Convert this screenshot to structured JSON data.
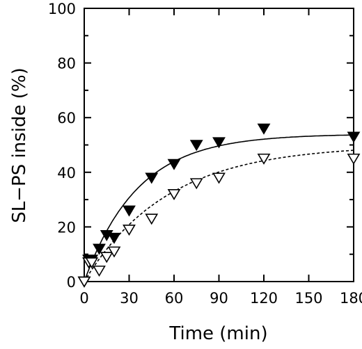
{
  "chart_data": {
    "type": "scatter",
    "xlabel": "Time (min)",
    "ylabel": "SL−PS inside (%)",
    "xlim": [
      0,
      180
    ],
    "ylim": [
      0,
      100
    ],
    "x_ticks": [
      0,
      30,
      60,
      90,
      120,
      150,
      180
    ],
    "x_tick_labels": [
      "0",
      "30",
      "60",
      "90",
      "120",
      "150",
      "180"
    ],
    "y_ticks": [
      0,
      20,
      40,
      60,
      80,
      100
    ],
    "y_tick_labels": [
      "0",
      "20",
      "40",
      "60",
      "80",
      "100"
    ],
    "grid": false,
    "legend": "none",
    "series": [
      {
        "marker": "filled-down-triangle",
        "line_style": "solid",
        "x": [
          0,
          3,
          5,
          10,
          15,
          20,
          30,
          45,
          60,
          75,
          90,
          120,
          180
        ],
        "y": [
          0,
          8,
          8,
          12,
          17,
          16,
          26,
          38,
          43,
          50,
          51,
          56,
          53
        ],
        "fit": {
          "x0": 0,
          "plateau": 54,
          "rate": 0.028,
          "dash": false
        }
      },
      {
        "marker": "open-down-triangle",
        "line_style": "dashed",
        "x": [
          0,
          3,
          5,
          10,
          15,
          20,
          30,
          45,
          60,
          75,
          90,
          120,
          180
        ],
        "y": [
          0,
          7,
          7,
          4,
          9,
          11,
          19,
          23,
          32,
          36,
          38,
          45,
          45
        ],
        "fit": {
          "x0": 0,
          "plateau": 50,
          "rate": 0.018,
          "dash": true
        }
      }
    ]
  }
}
